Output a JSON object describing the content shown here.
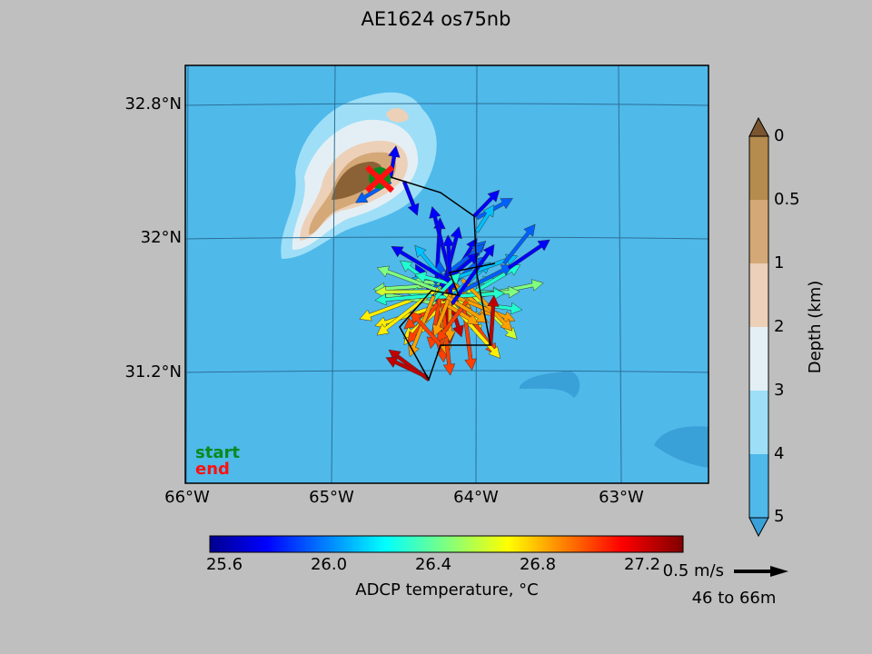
{
  "title": "AE1624 os75nb",
  "map": {
    "lat_labels": [
      "32.8°N",
      "32°N",
      "31.2°N"
    ],
    "lon_labels": [
      "66°W",
      "65°W",
      "64°W",
      "63°W"
    ],
    "legend": {
      "start": "start",
      "end": "end"
    }
  },
  "temperature_colorbar": {
    "label": "ADCP temperature, °C",
    "ticks": [
      "25.6",
      "26.0",
      "26.4",
      "26.8",
      "27.2"
    ]
  },
  "depth_colorbar": {
    "label": "Depth (km)",
    "ticks": [
      "0",
      "0.5",
      "1",
      "2",
      "3",
      "4",
      "5"
    ]
  },
  "scale": {
    "label": "0.5 m/s",
    "depth_range": "46 to 66m"
  }
}
